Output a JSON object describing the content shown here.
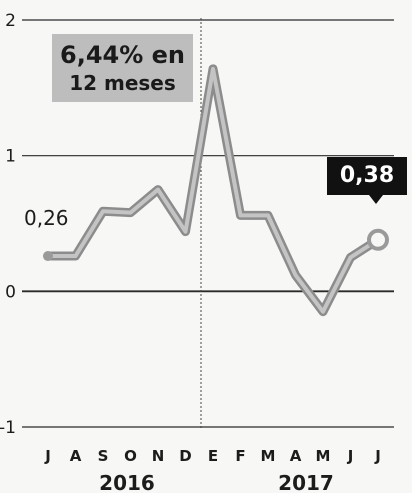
{
  "chart_data": {
    "type": "line",
    "categories": [
      "J",
      "A",
      "S",
      "O",
      "N",
      "D",
      "E",
      "F",
      "M",
      "A",
      "M",
      "J",
      "J"
    ],
    "years": [
      "2016",
      "2017"
    ],
    "values": [
      0.26,
      0.26,
      0.59,
      0.58,
      0.75,
      0.44,
      1.64,
      0.56,
      0.56,
      0.12,
      -0.15,
      0.25,
      0.38
    ],
    "ylim": [
      -1,
      2
    ],
    "yticks": [
      "2",
      "1",
      "0",
      "-1"
    ],
    "start_label": "0,26",
    "end_label": "0,38",
    "annotation": {
      "line1": "6,44% en",
      "line2": "12 meses"
    },
    "grid": true,
    "colors": {
      "line": "#9a9a9a",
      "grid": "#2a2a2a",
      "badge": "#111111",
      "callout_bg": "#bdbdbd"
    }
  }
}
